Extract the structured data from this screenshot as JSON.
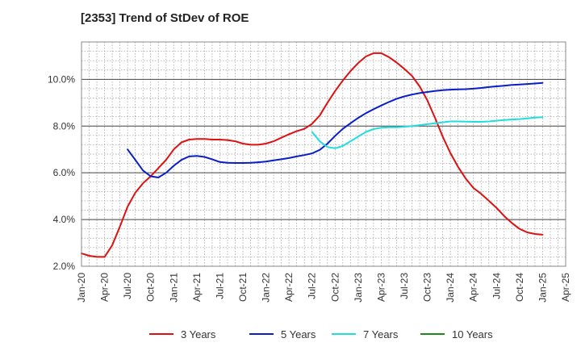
{
  "chart_data": {
    "type": "line",
    "title": "[2353]  Trend of StDev of ROE",
    "xlabel": "",
    "ylabel": "",
    "ylim": [
      2.0,
      11.6
    ],
    "yticks": [
      2.0,
      4.0,
      6.0,
      8.0,
      10.0
    ],
    "ytick_labels": [
      "2.0%",
      "4.0%",
      "6.0%",
      "8.0%",
      "10.0%"
    ],
    "x_range": [
      "2020-01",
      "2025-04"
    ],
    "x_tick_labels": [
      "Jan-20",
      "Apr-20",
      "Jul-20",
      "Oct-20",
      "Jan-21",
      "Apr-21",
      "Jul-21",
      "Oct-21",
      "Jan-22",
      "Apr-22",
      "Jul-22",
      "Oct-22",
      "Jan-23",
      "Apr-23",
      "Jul-23",
      "Oct-23",
      "Jan-24",
      "Apr-24",
      "Jul-24",
      "Oct-24",
      "Jan-25",
      "Apr-25"
    ],
    "grid": true,
    "legend_position": "bottom",
    "series": [
      {
        "name": "3 Years",
        "color": "#dd1111",
        "x": [
          "2020-01",
          "2020-02",
          "2020-03",
          "2020-04",
          "2020-05",
          "2020-06",
          "2020-07",
          "2020-08",
          "2020-09",
          "2020-10",
          "2020-11",
          "2020-12",
          "2021-01",
          "2021-02",
          "2021-03",
          "2021-04",
          "2021-05",
          "2021-06",
          "2021-07",
          "2021-08",
          "2021-09",
          "2021-10",
          "2021-11",
          "2021-12",
          "2022-01",
          "2022-02",
          "2022-03",
          "2022-04",
          "2022-05",
          "2022-06",
          "2022-07",
          "2022-08",
          "2022-09",
          "2022-10",
          "2022-11",
          "2022-12",
          "2023-01",
          "2023-02",
          "2023-03",
          "2023-04",
          "2023-05",
          "2023-06",
          "2023-07",
          "2023-08",
          "2023-09",
          "2023-10",
          "2023-11",
          "2023-12",
          "2024-01",
          "2024-02",
          "2024-03",
          "2024-04",
          "2024-05",
          "2024-06",
          "2024-07",
          "2024-08",
          "2024-09",
          "2024-10",
          "2024-11",
          "2024-12",
          "2025-01"
        ],
        "y": [
          2.55,
          2.45,
          2.4,
          2.4,
          2.9,
          3.7,
          4.55,
          5.15,
          5.55,
          5.85,
          6.2,
          6.55,
          7.0,
          7.3,
          7.42,
          7.45,
          7.45,
          7.42,
          7.42,
          7.4,
          7.35,
          7.25,
          7.2,
          7.2,
          7.25,
          7.35,
          7.5,
          7.65,
          7.78,
          7.88,
          8.1,
          8.45,
          9.0,
          9.5,
          9.95,
          10.35,
          10.7,
          10.98,
          11.12,
          11.12,
          10.95,
          10.72,
          10.45,
          10.15,
          9.7,
          9.1,
          8.35,
          7.55,
          6.85,
          6.25,
          5.75,
          5.35,
          5.1,
          4.8,
          4.5,
          4.15,
          3.85,
          3.6,
          3.45,
          3.38,
          3.35
        ]
      },
      {
        "name": "5 Years",
        "color": "#0a1ec8",
        "x": [
          "2020-07",
          "2020-08",
          "2020-09",
          "2020-10",
          "2020-11",
          "2020-12",
          "2021-01",
          "2021-02",
          "2021-03",
          "2021-04",
          "2021-05",
          "2021-06",
          "2021-07",
          "2021-08",
          "2021-09",
          "2021-10",
          "2021-11",
          "2021-12",
          "2022-01",
          "2022-02",
          "2022-03",
          "2022-04",
          "2022-05",
          "2022-06",
          "2022-07",
          "2022-08",
          "2022-09",
          "2022-10",
          "2022-11",
          "2022-12",
          "2023-01",
          "2023-02",
          "2023-03",
          "2023-04",
          "2023-05",
          "2023-06",
          "2023-07",
          "2023-08",
          "2023-09",
          "2023-10",
          "2023-11",
          "2023-12",
          "2024-01",
          "2024-02",
          "2024-03",
          "2024-04",
          "2024-05",
          "2024-06",
          "2024-07",
          "2024-08",
          "2024-09",
          "2024-10",
          "2024-11",
          "2024-12",
          "2025-01"
        ],
        "y": [
          7.0,
          6.55,
          6.1,
          5.85,
          5.8,
          6.0,
          6.3,
          6.55,
          6.7,
          6.72,
          6.68,
          6.58,
          6.46,
          6.43,
          6.42,
          6.42,
          6.43,
          6.45,
          6.48,
          6.53,
          6.58,
          6.63,
          6.7,
          6.76,
          6.83,
          6.98,
          7.25,
          7.58,
          7.88,
          8.12,
          8.35,
          8.55,
          8.72,
          8.88,
          9.03,
          9.17,
          9.27,
          9.35,
          9.41,
          9.46,
          9.5,
          9.54,
          9.56,
          9.57,
          9.58,
          9.6,
          9.63,
          9.67,
          9.7,
          9.73,
          9.76,
          9.78,
          9.8,
          9.82,
          9.85
        ]
      },
      {
        "name": "7 Years",
        "color": "#22dddd",
        "x": [
          "2022-07",
          "2022-08",
          "2022-09",
          "2022-10",
          "2022-11",
          "2022-12",
          "2023-01",
          "2023-02",
          "2023-03",
          "2023-04",
          "2023-05",
          "2023-06",
          "2023-07",
          "2023-08",
          "2023-09",
          "2023-10",
          "2023-11",
          "2023-12",
          "2024-01",
          "2024-02",
          "2024-03",
          "2024-04",
          "2024-05",
          "2024-06",
          "2024-07",
          "2024-08",
          "2024-09",
          "2024-10",
          "2024-11",
          "2024-12",
          "2025-01"
        ],
        "y": [
          7.75,
          7.35,
          7.1,
          7.05,
          7.15,
          7.35,
          7.55,
          7.75,
          7.87,
          7.93,
          7.95,
          7.95,
          7.97,
          8.0,
          8.04,
          8.08,
          8.12,
          8.16,
          8.2,
          8.2,
          8.19,
          8.18,
          8.18,
          8.2,
          8.23,
          8.26,
          8.28,
          8.3,
          8.33,
          8.36,
          8.38
        ]
      },
      {
        "name": "10 Years",
        "color": "#1a8a1a",
        "x": [],
        "y": []
      }
    ]
  }
}
